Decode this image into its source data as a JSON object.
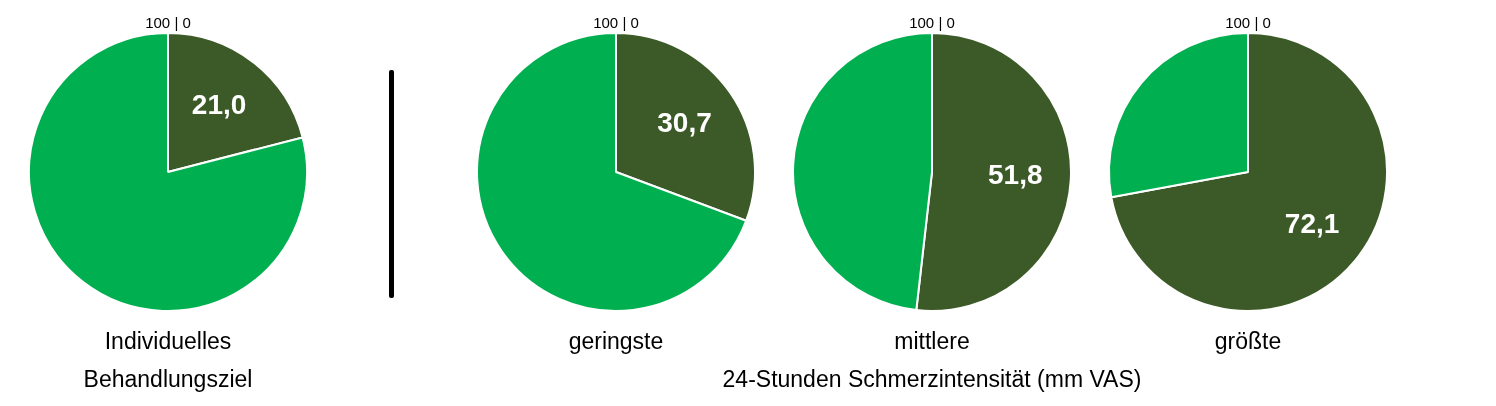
{
  "chart_data": [
    {
      "type": "pie",
      "categories": [
        null,
        null
      ],
      "values": [
        21.0,
        79.0
      ],
      "colors": [
        "#3c5a27",
        "#00b050"
      ],
      "value_labels": [
        "21,0",
        null
      ],
      "legend": false,
      "xlabel": "Individuelles Behandlungsziel",
      "annotations": [
        "100 | 0"
      ]
    },
    {
      "type": "pie",
      "categories": [
        null,
        null
      ],
      "values": [
        30.7,
        69.3
      ],
      "colors": [
        "#3c5a27",
        "#00b050"
      ],
      "value_labels": [
        "30,7",
        null
      ],
      "legend": false,
      "xlabel": "geringste",
      "annotations": [
        "100 | 0"
      ]
    },
    {
      "type": "pie",
      "categories": [
        null,
        null
      ],
      "values": [
        51.8,
        48.2
      ],
      "colors": [
        "#3c5a27",
        "#00b050"
      ],
      "value_labels": [
        "51,8",
        null
      ],
      "legend": false,
      "xlabel": "mittlere",
      "annotations": [
        "100 | 0",
        "24-Stunden Schmerzintensität (mm VAS)"
      ]
    },
    {
      "type": "pie",
      "categories": [
        null,
        null
      ],
      "values": [
        72.1,
        27.9
      ],
      "colors": [
        "#3c5a27",
        "#00b050"
      ],
      "value_labels": [
        "72,1",
        null
      ],
      "legend": false,
      "xlabel": "größte",
      "annotations": [
        "100 | 0"
      ]
    }
  ]
}
